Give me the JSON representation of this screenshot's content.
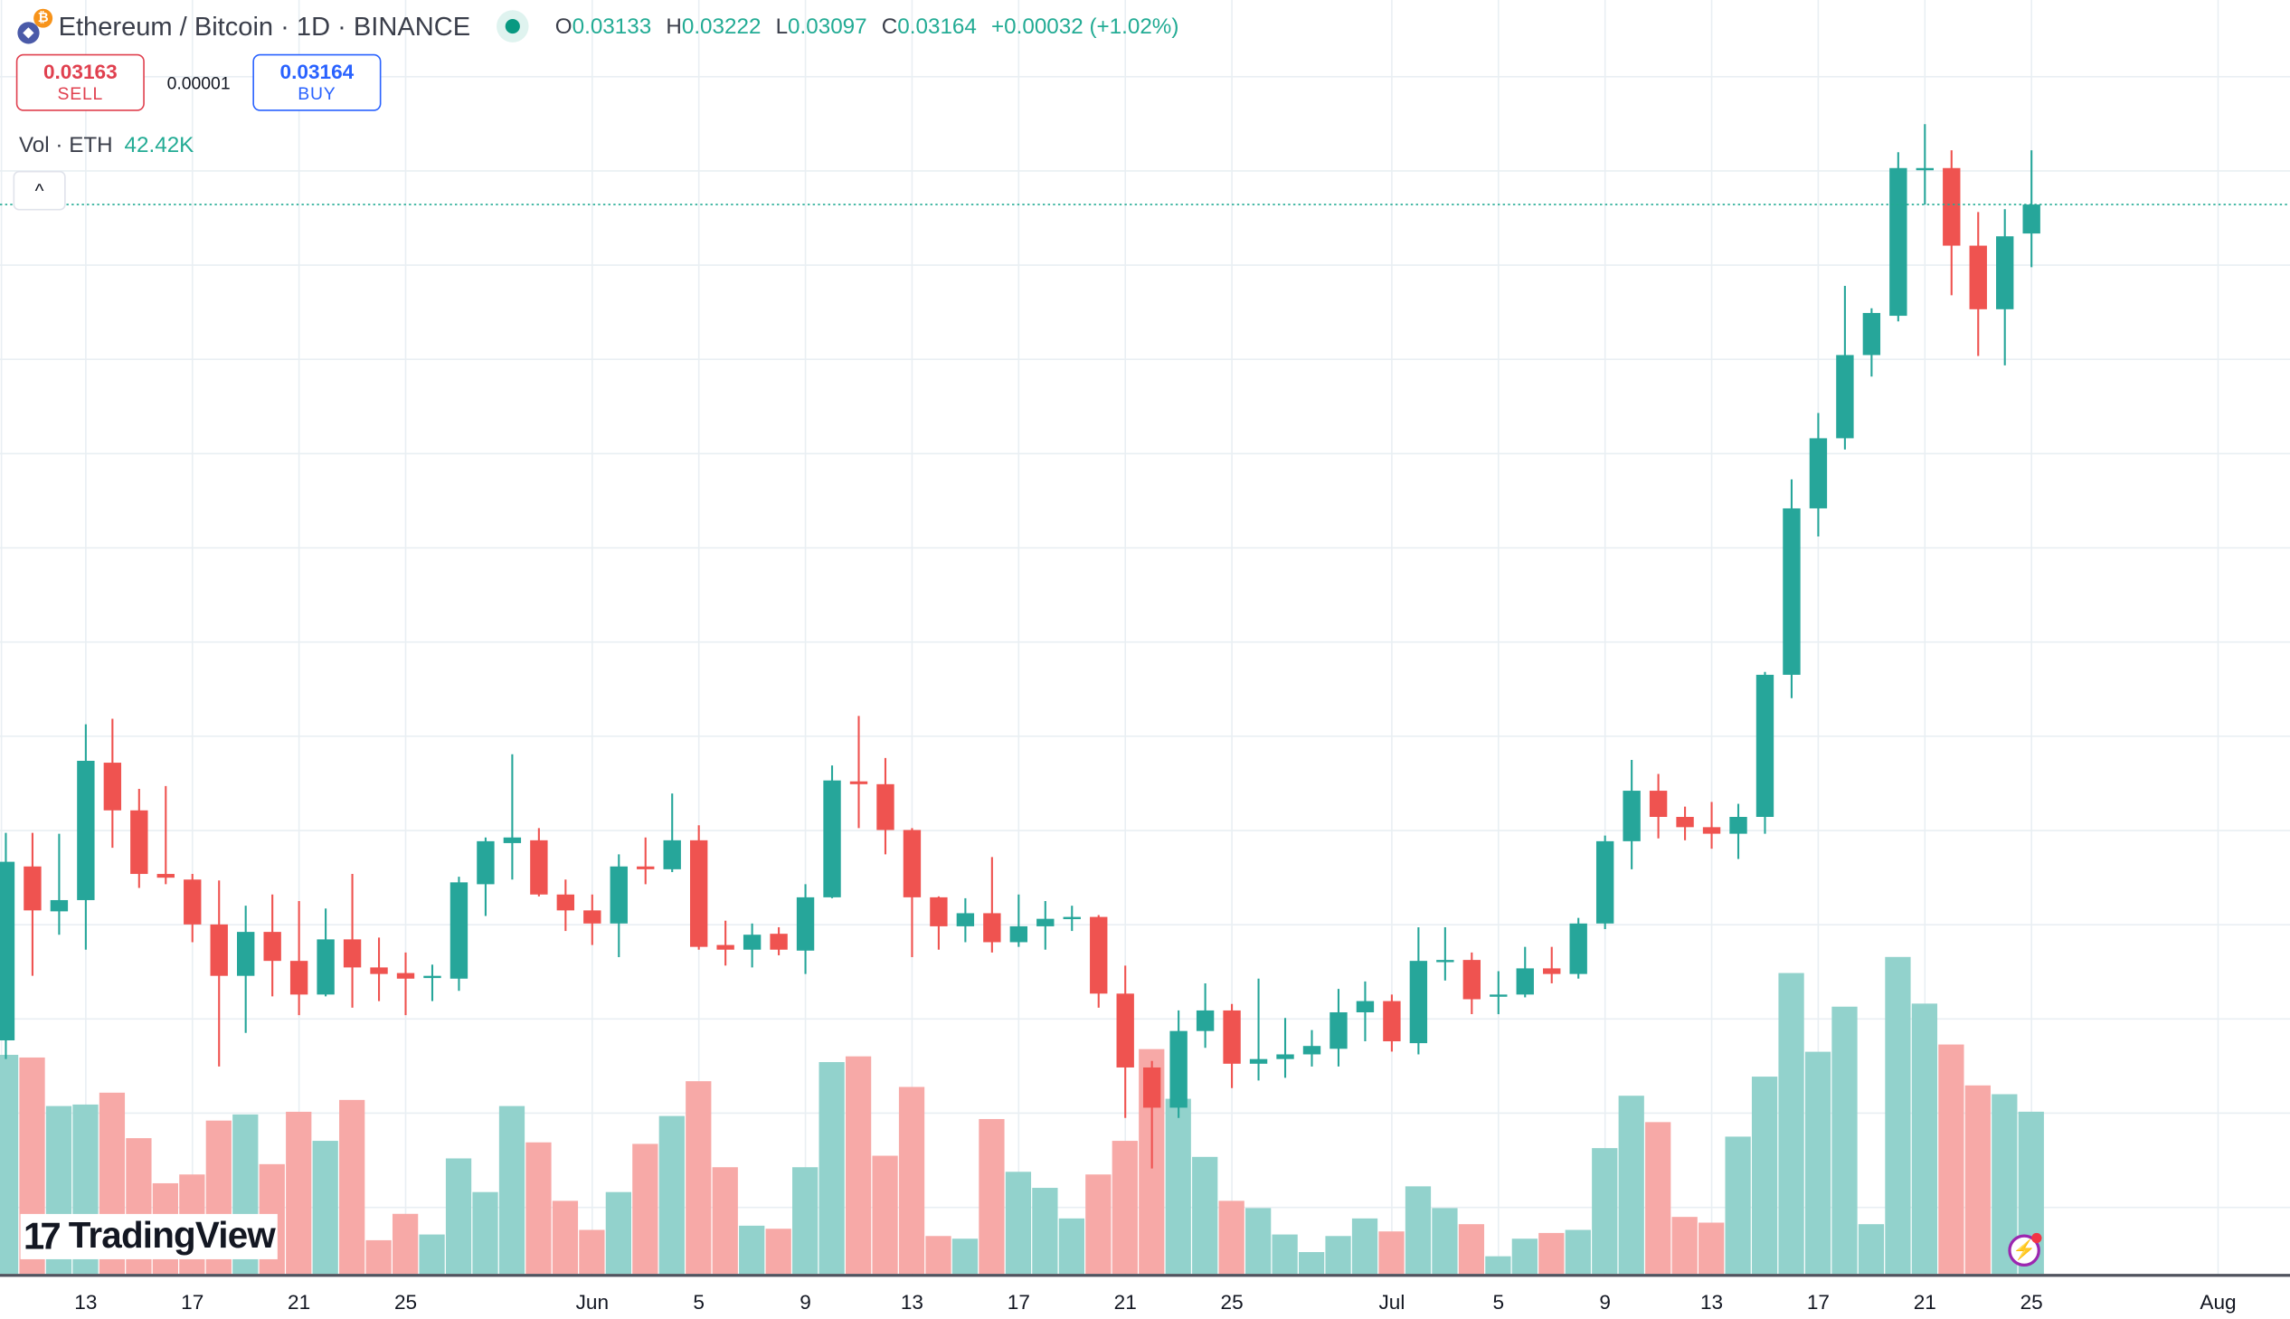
{
  "header": {
    "title": "Ethereum / Bitcoin · 1D · BINANCE",
    "ohlc": [
      {
        "key": "O",
        "value": "0.03133"
      },
      {
        "key": "H",
        "value": "0.03222"
      },
      {
        "key": "L",
        "value": "0.03097"
      },
      {
        "key": "C",
        "value": "0.03164"
      }
    ],
    "change": "+0.00032 (+1.02%)",
    "icons": {
      "pair": "eth-btc-icon",
      "status": "market-open-dot"
    }
  },
  "trade": {
    "sell_price": "0.03163",
    "sell_label": "SELL",
    "spread": "0.00001",
    "buy_price": "0.03164",
    "buy_label": "BUY"
  },
  "volume_legend": {
    "label": "Vol · ETH",
    "value": "42.42K"
  },
  "collapse_icon": "^",
  "branding": {
    "logo_mark": "17",
    "logo_text": "TradingView"
  },
  "colors": {
    "up": "#26a69a",
    "down": "#ef5350",
    "up_vol": "#92d2cc",
    "down_vol": "#f7a9a7",
    "grid": "#e9eff3",
    "last_price_line": "#22ab94"
  },
  "chart_data": {
    "type": "candlestick",
    "title": "Ethereum / Bitcoin · 1D · BINANCE",
    "interval": "1D",
    "last_price": 0.03164,
    "y_range": [
      0.02,
      0.0335
    ],
    "x_ticks": [
      {
        "index": 3,
        "label": "13"
      },
      {
        "index": 7,
        "label": "17"
      },
      {
        "index": 11,
        "label": "21"
      },
      {
        "index": 15,
        "label": "25"
      },
      {
        "index": 22,
        "label": "Jun"
      },
      {
        "index": 26,
        "label": "5"
      },
      {
        "index": 30,
        "label": "9"
      },
      {
        "index": 34,
        "label": "13"
      },
      {
        "index": 38,
        "label": "17"
      },
      {
        "index": 42,
        "label": "21"
      },
      {
        "index": 46,
        "label": "25"
      },
      {
        "index": 52,
        "label": "Jul"
      },
      {
        "index": 56,
        "label": "5"
      },
      {
        "index": 60,
        "label": "9"
      },
      {
        "index": 64,
        "label": "13"
      },
      {
        "index": 68,
        "label": "17"
      },
      {
        "index": 72,
        "label": "21"
      },
      {
        "index": 76,
        "label": "25"
      },
      {
        "index": 83,
        "label": "Aug"
      }
    ],
    "ohlc": [
      [
        0.0227,
        0.02492,
        0.0225,
        0.02461
      ],
      [
        0.02456,
        0.02492,
        0.02339,
        0.02409
      ],
      [
        0.02408,
        0.02491,
        0.02383,
        0.0242
      ],
      [
        0.0242,
        0.02608,
        0.02367,
        0.02569
      ],
      [
        0.02567,
        0.02614,
        0.02476,
        0.02516
      ],
      [
        0.02516,
        0.02539,
        0.02433,
        0.02448
      ],
      [
        0.02448,
        0.02542,
        0.02437,
        0.02444
      ],
      [
        0.02442,
        0.02448,
        0.02375,
        0.02394
      ],
      [
        0.02394,
        0.02441,
        0.02242,
        0.02339
      ],
      [
        0.02339,
        0.02414,
        0.02278,
        0.02386
      ],
      [
        0.02386,
        0.02426,
        0.02317,
        0.02355
      ],
      [
        0.02355,
        0.02419,
        0.02297,
        0.02319
      ],
      [
        0.02319,
        0.02411,
        0.02317,
        0.02378
      ],
      [
        0.02378,
        0.02448,
        0.02305,
        0.02348
      ],
      [
        0.02348,
        0.0238,
        0.02312,
        0.02341
      ],
      [
        0.02342,
        0.02364,
        0.02297,
        0.02336
      ],
      [
        0.02337,
        0.02351,
        0.02312,
        0.02339
      ],
      [
        0.02336,
        0.02445,
        0.02323,
        0.02439
      ],
      [
        0.02437,
        0.02487,
        0.02403,
        0.02483
      ],
      [
        0.02481,
        0.02576,
        0.02442,
        0.02487
      ],
      [
        0.02484,
        0.02497,
        0.02424,
        0.02426
      ],
      [
        0.02426,
        0.02442,
        0.02387,
        0.02409
      ],
      [
        0.02409,
        0.02426,
        0.02372,
        0.02395
      ],
      [
        0.02395,
        0.02469,
        0.02359,
        0.02456
      ],
      [
        0.02456,
        0.02487,
        0.02437,
        0.02453
      ],
      [
        0.02453,
        0.02534,
        0.0245,
        0.02484
      ],
      [
        0.02484,
        0.025,
        0.02367,
        0.0237
      ],
      [
        0.02372,
        0.02398,
        0.0235,
        0.02367
      ],
      [
        0.02367,
        0.02395,
        0.02348,
        0.02383
      ],
      [
        0.02384,
        0.02391,
        0.02361,
        0.02367
      ],
      [
        0.02366,
        0.02437,
        0.02341,
        0.02423
      ],
      [
        0.02423,
        0.02564,
        0.02422,
        0.02548
      ],
      [
        0.02547,
        0.02617,
        0.02497,
        0.02544
      ],
      [
        0.02544,
        0.02572,
        0.02469,
        0.02495
      ],
      [
        0.02495,
        0.02497,
        0.02359,
        0.02423
      ],
      [
        0.02423,
        0.02424,
        0.02367,
        0.02392
      ],
      [
        0.02392,
        0.02422,
        0.02375,
        0.02406
      ],
      [
        0.02406,
        0.02466,
        0.02364,
        0.02375
      ],
      [
        0.02375,
        0.02426,
        0.0237,
        0.02392
      ],
      [
        0.02392,
        0.02419,
        0.02367,
        0.024
      ],
      [
        0.024,
        0.02414,
        0.02387,
        0.02402
      ],
      [
        0.02402,
        0.02404,
        0.02305,
        0.0232
      ],
      [
        0.0232,
        0.0235,
        0.02187,
        0.02241
      ],
      [
        0.02241,
        0.02248,
        0.02133,
        0.02198
      ],
      [
        0.02198,
        0.02302,
        0.02187,
        0.0228
      ],
      [
        0.0228,
        0.02331,
        0.02262,
        0.02302
      ],
      [
        0.02302,
        0.02309,
        0.02219,
        0.02245
      ],
      [
        0.02245,
        0.02336,
        0.02227,
        0.0225
      ],
      [
        0.0225,
        0.02294,
        0.0223,
        0.02255
      ],
      [
        0.02255,
        0.02281,
        0.02242,
        0.02264
      ],
      [
        0.02261,
        0.02325,
        0.02242,
        0.023
      ],
      [
        0.023,
        0.02333,
        0.02269,
        0.02312
      ],
      [
        0.02312,
        0.02319,
        0.02258,
        0.02269
      ],
      [
        0.02267,
        0.02391,
        0.02255,
        0.02355
      ],
      [
        0.02355,
        0.02391,
        0.02334,
        0.02356
      ],
      [
        0.02356,
        0.02364,
        0.02298,
        0.02314
      ],
      [
        0.02317,
        0.02344,
        0.02298,
        0.02319
      ],
      [
        0.02319,
        0.0237,
        0.02316,
        0.02347
      ],
      [
        0.02347,
        0.0237,
        0.02331,
        0.02341
      ],
      [
        0.02341,
        0.02401,
        0.02336,
        0.02395
      ],
      [
        0.02395,
        0.02489,
        0.02389,
        0.02483
      ],
      [
        0.02483,
        0.0257,
        0.02453,
        0.02537
      ],
      [
        0.02537,
        0.02555,
        0.02486,
        0.02509
      ],
      [
        0.02509,
        0.0252,
        0.02484,
        0.02498
      ],
      [
        0.02498,
        0.02525,
        0.02475,
        0.02491
      ],
      [
        0.02491,
        0.02523,
        0.02464,
        0.02509
      ],
      [
        0.02509,
        0.02664,
        0.02491,
        0.02661
      ],
      [
        0.02661,
        0.0287,
        0.02636,
        0.02839
      ],
      [
        0.02839,
        0.02941,
        0.02809,
        0.02914
      ],
      [
        0.02914,
        0.03077,
        0.02902,
        0.03003
      ],
      [
        0.03003,
        0.03053,
        0.0298,
        0.03048
      ],
      [
        0.03045,
        0.0322,
        0.03039,
        0.03203
      ],
      [
        0.03202,
        0.0325,
        0.03164,
        0.03203
      ],
      [
        0.03203,
        0.03222,
        0.03067,
        0.0312
      ],
      [
        0.0312,
        0.03156,
        0.03002,
        0.03052
      ],
      [
        0.03052,
        0.03159,
        0.02992,
        0.0313
      ],
      [
        0.03133,
        0.03222,
        0.03097,
        0.03164
      ]
    ],
    "volume_k": [
      57.3,
      56.6,
      43.9,
      44.3,
      47.4,
      35.5,
      23.7,
      26.0,
      40.1,
      41.7,
      28.7,
      42.4,
      34.8,
      45.5,
      8.8,
      15.7,
      10.3,
      30.2,
      21.4,
      43.9,
      34.4,
      19.1,
      11.5,
      21.4,
      34.0,
      41.3,
      50.4,
      27.9,
      12.6,
      11.8,
      27.9,
      55.4,
      56.9,
      30.9,
      48.9,
      9.9,
      9.2,
      40.5,
      26.7,
      22.5,
      14.5,
      26.0,
      34.8,
      58.8,
      45.8,
      30.6,
      19.1,
      17.2,
      10.3,
      5.7,
      9.9,
      14.5,
      11.1,
      22.9,
      17.2,
      13.0,
      4.6,
      9.2,
      10.7,
      11.5,
      32.9,
      46.6,
      39.7,
      14.9,
      13.4,
      35.9,
      51.6,
      78.7,
      58.1,
      69.9,
      13.0,
      82.9,
      70.7,
      60.0,
      49.3,
      47.0,
      42.42
    ]
  }
}
